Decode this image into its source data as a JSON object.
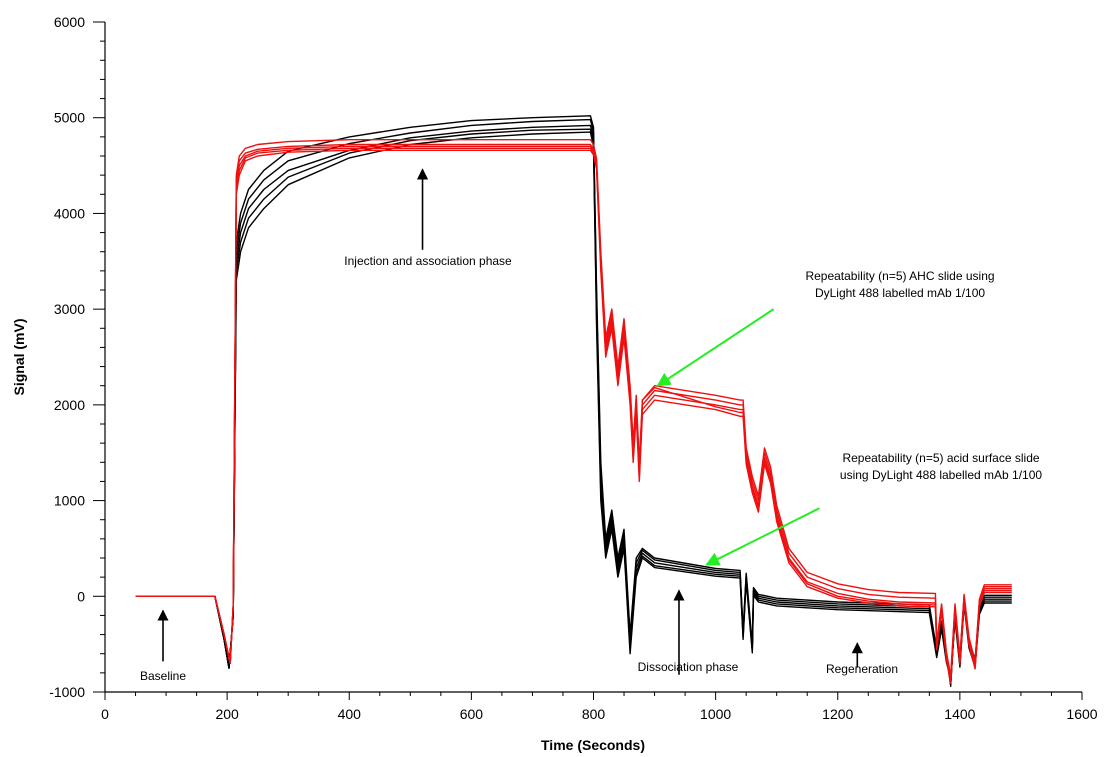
{
  "chart_data": {
    "type": "line",
    "title": "",
    "xlabel": "Time (Seconds)",
    "ylabel": "Signal (mV)",
    "xlim": [
      0,
      1600
    ],
    "ylim": [
      -1000,
      6000
    ],
    "xticks": [
      0,
      200,
      400,
      600,
      800,
      1000,
      1200,
      1400,
      1600
    ],
    "yticks": [
      -1000,
      0,
      1000,
      2000,
      3000,
      4000,
      5000,
      6000
    ],
    "grid": false,
    "colors": {
      "AHC": "#ee1111",
      "acid": "#000000",
      "annotation_arrow_green": "#22ee22",
      "annotation_arrow_black": "#000000"
    },
    "series": [
      {
        "group": "acid",
        "color": "#000000",
        "x": [
          50,
          180,
          195,
          203,
          210,
          215,
          222,
          235,
          260,
          300,
          400,
          500,
          600,
          700,
          795,
          800,
          805,
          812,
          820,
          830,
          840,
          850,
          860,
          870,
          880,
          900,
          1000,
          1040,
          1045,
          1050,
          1060,
          1062,
          1070,
          1100,
          1200,
          1350,
          1362,
          1370,
          1378,
          1385,
          1392,
          1400,
          1407,
          1415,
          1425,
          1432,
          1440,
          1485
        ],
        "y": [
          0,
          0,
          -450,
          -750,
          -200,
          3500,
          3800,
          4050,
          4250,
          4450,
          4660,
          4790,
          4860,
          4900,
          4920,
          4800,
          3000,
          1200,
          500,
          800,
          300,
          600,
          -500,
          300,
          450,
          350,
          250,
          230,
          -400,
          200,
          -550,
          50,
          -20,
          -60,
          -100,
          -130,
          -600,
          -300,
          -650,
          -900,
          -200,
          -700,
          -50,
          -500,
          -700,
          -150,
          -30,
          -30
        ]
      },
      {
        "group": "acid",
        "color": "#000000",
        "x": [
          50,
          180,
          195,
          203,
          210,
          215,
          222,
          235,
          260,
          300,
          400,
          500,
          600,
          700,
          795,
          800,
          805,
          812,
          820,
          830,
          840,
          850,
          860,
          870,
          880,
          900,
          1000,
          1040,
          1045,
          1050,
          1060,
          1062,
          1070,
          1100,
          1200,
          1350,
          1362,
          1370,
          1378,
          1385,
          1392,
          1400,
          1407,
          1415,
          1425,
          1432,
          1440,
          1485
        ],
        "y": [
          0,
          0,
          -450,
          -750,
          -200,
          3400,
          3700,
          3950,
          4150,
          4380,
          4630,
          4760,
          4830,
          4870,
          4880,
          4750,
          2900,
          1100,
          450,
          750,
          250,
          550,
          -550,
          250,
          420,
          320,
          230,
          210,
          -420,
          180,
          -570,
          30,
          -40,
          -80,
          -120,
          -150,
          -620,
          -320,
          -670,
          -880,
          -220,
          -720,
          -70,
          -520,
          -720,
          -170,
          -50,
          -50
        ]
      },
      {
        "group": "acid",
        "color": "#000000",
        "x": [
          50,
          180,
          195,
          203,
          210,
          215,
          222,
          235,
          260,
          300,
          400,
          500,
          600,
          700,
          795,
          800,
          805,
          812,
          820,
          830,
          840,
          850,
          860,
          870,
          880,
          900,
          1000,
          1040,
          1045,
          1050,
          1060,
          1062,
          1070,
          1100,
          1200,
          1350,
          1362,
          1370,
          1378,
          1385,
          1392,
          1400,
          1407,
          1415,
          1425,
          1432,
          1440,
          1485
        ],
        "y": [
          0,
          0,
          -450,
          -750,
          -200,
          3300,
          3600,
          3850,
          4050,
          4300,
          4580,
          4720,
          4790,
          4830,
          4850,
          4700,
          2800,
          1000,
          400,
          700,
          200,
          500,
          -600,
          200,
          400,
          300,
          210,
          190,
          -450,
          160,
          -590,
          10,
          -60,
          -100,
          -140,
          -170,
          -640,
          -340,
          -690,
          -860,
          -240,
          -740,
          -90,
          -540,
          -740,
          -190,
          -70,
          -70
        ]
      },
      {
        "group": "acid",
        "color": "#000000",
        "x": [
          50,
          180,
          195,
          203,
          210,
          215,
          222,
          235,
          260,
          300,
          400,
          500,
          600,
          700,
          795,
          800,
          805,
          812,
          820,
          830,
          840,
          850,
          860,
          870,
          880,
          900,
          1000,
          1040,
          1045,
          1050,
          1060,
          1062,
          1070,
          1100,
          1200,
          1350,
          1362,
          1370,
          1378,
          1385,
          1392,
          1400,
          1407,
          1415,
          1425,
          1432,
          1440,
          1485
        ],
        "y": [
          0,
          0,
          -450,
          -750,
          -200,
          3600,
          3900,
          4150,
          4350,
          4550,
          4730,
          4840,
          4920,
          4960,
          4980,
          4850,
          3100,
          1300,
          550,
          850,
          350,
          650,
          -450,
          350,
          480,
          380,
          270,
          250,
          -380,
          220,
          -530,
          70,
          0,
          -40,
          -80,
          -110,
          -580,
          -280,
          -630,
          -920,
          -180,
          -680,
          -30,
          -480,
          -680,
          -130,
          -10,
          -10
        ]
      },
      {
        "group": "acid",
        "color": "#000000",
        "x": [
          50,
          180,
          195,
          203,
          210,
          215,
          222,
          235,
          260,
          300,
          400,
          500,
          600,
          700,
          795,
          800,
          805,
          812,
          820,
          830,
          840,
          850,
          860,
          870,
          880,
          900,
          1000,
          1040,
          1045,
          1050,
          1060,
          1062,
          1070,
          1100,
          1200,
          1350,
          1362,
          1370,
          1378,
          1385,
          1392,
          1400,
          1407,
          1415,
          1425,
          1432,
          1440,
          1485
        ],
        "y": [
          0,
          0,
          -450,
          -750,
          -200,
          3700,
          4000,
          4250,
          4450,
          4650,
          4800,
          4900,
          4970,
          5000,
          5020,
          4900,
          3200,
          1400,
          600,
          900,
          400,
          700,
          -400,
          400,
          500,
          400,
          290,
          270,
          -360,
          240,
          -510,
          90,
          20,
          -20,
          -60,
          -90,
          -560,
          -260,
          -610,
          -940,
          -160,
          -660,
          -10,
          -460,
          -660,
          -110,
          10,
          10
        ]
      },
      {
        "group": "AHC",
        "color": "#ee1111",
        "x": [
          50,
          180,
          195,
          205,
          210,
          215,
          220,
          230,
          250,
          300,
          400,
          500,
          600,
          700,
          795,
          800,
          805,
          812,
          820,
          830,
          840,
          850,
          860,
          865,
          870,
          875,
          880,
          900,
          1000,
          1040,
          1045,
          1050,
          1060,
          1070,
          1080,
          1090,
          1100,
          1120,
          1150,
          1200,
          1250,
          1300,
          1360,
          1362,
          1370,
          1378,
          1385,
          1392,
          1400,
          1407,
          1415,
          1425,
          1432,
          1440,
          1485
        ],
        "y": [
          0,
          0,
          -400,
          -700,
          -100,
          4300,
          4500,
          4600,
          4650,
          4680,
          4700,
          4700,
          4700,
          4700,
          4700,
          4650,
          4500,
          3500,
          2600,
          2900,
          2300,
          2800,
          2100,
          1500,
          2000,
          1300,
          2000,
          2150,
          2050,
          2000,
          2000,
          1500,
          1200,
          1000,
          1500,
          1300,
          900,
          450,
          200,
          80,
          20,
          -10,
          -20,
          -500,
          -100,
          -600,
          -850,
          -100,
          -650,
          0,
          -450,
          -700,
          -50,
          100,
          100
        ]
      },
      {
        "group": "AHC",
        "color": "#ee1111",
        "x": [
          50,
          180,
          195,
          205,
          210,
          215,
          220,
          230,
          250,
          300,
          400,
          500,
          600,
          700,
          795,
          800,
          805,
          812,
          820,
          830,
          840,
          850,
          860,
          865,
          870,
          875,
          880,
          900,
          1000,
          1040,
          1045,
          1050,
          1060,
          1070,
          1080,
          1090,
          1100,
          1120,
          1150,
          1200,
          1250,
          1300,
          1360,
          1362,
          1370,
          1378,
          1385,
          1392,
          1400,
          1407,
          1415,
          1425,
          1432,
          1440,
          1485
        ],
        "y": [
          0,
          0,
          -400,
          -700,
          -100,
          4350,
          4550,
          4630,
          4670,
          4700,
          4720,
          4720,
          4720,
          4720,
          4720,
          4670,
          4520,
          3550,
          2650,
          2950,
          2350,
          2850,
          2150,
          1550,
          2050,
          1350,
          2050,
          2200,
          2100,
          2050,
          2050,
          1550,
          1250,
          1050,
          1550,
          1350,
          950,
          500,
          250,
          130,
          70,
          40,
          30,
          -480,
          -80,
          -580,
          -830,
          -80,
          -630,
          20,
          -430,
          -680,
          -30,
          120,
          120
        ]
      },
      {
        "group": "AHC",
        "color": "#ee1111",
        "x": [
          50,
          180,
          195,
          205,
          210,
          215,
          220,
          230,
          250,
          300,
          400,
          500,
          600,
          700,
          795,
          800,
          805,
          812,
          820,
          830,
          840,
          850,
          860,
          865,
          870,
          875,
          880,
          900,
          1000,
          1040,
          1045,
          1050,
          1060,
          1070,
          1080,
          1090,
          1100,
          1120,
          1150,
          1200,
          1250,
          1300,
          1360,
          1362,
          1370,
          1378,
          1385,
          1392,
          1400,
          1407,
          1415,
          1425,
          1432,
          1440,
          1485
        ],
        "y": [
          0,
          0,
          -400,
          -700,
          -100,
          4250,
          4450,
          4580,
          4630,
          4660,
          4680,
          4680,
          4680,
          4680,
          4680,
          4630,
          4480,
          3450,
          2550,
          2850,
          2250,
          2750,
          2050,
          1450,
          1950,
          1250,
          1950,
          2100,
          2000,
          1950,
          1950,
          1450,
          1150,
          950,
          1450,
          1250,
          850,
          400,
          150,
          30,
          -30,
          -60,
          -70,
          -520,
          -120,
          -620,
          -870,
          -120,
          -670,
          -20,
          -470,
          -720,
          -70,
          80,
          80
        ]
      },
      {
        "group": "AHC",
        "color": "#ee1111",
        "x": [
          50,
          180,
          195,
          205,
          210,
          215,
          220,
          230,
          250,
          300,
          400,
          500,
          600,
          700,
          795,
          800,
          805,
          812,
          820,
          830,
          840,
          850,
          860,
          865,
          870,
          875,
          880,
          900,
          1000,
          1040,
          1045,
          1050,
          1060,
          1070,
          1080,
          1090,
          1100,
          1120,
          1150,
          1200,
          1250,
          1300,
          1360,
          1362,
          1370,
          1378,
          1385,
          1392,
          1400,
          1407,
          1415,
          1425,
          1432,
          1440,
          1485
        ],
        "y": [
          0,
          0,
          -400,
          -700,
          -100,
          4400,
          4600,
          4680,
          4720,
          4750,
          4770,
          4770,
          4770,
          4770,
          4770,
          4720,
          4570,
          3600,
          2700,
          3000,
          2400,
          2900,
          2200,
          1600,
          2100,
          1400,
          2050,
          2180,
          1980,
          1920,
          1920,
          1420,
          1120,
          920,
          1420,
          1220,
          820,
          380,
          130,
          0,
          -50,
          -80,
          -90,
          -540,
          -140,
          -640,
          -890,
          -140,
          -690,
          -40,
          -490,
          -740,
          -90,
          60,
          60
        ]
      },
      {
        "group": "AHC",
        "color": "#ee1111",
        "x": [
          50,
          180,
          195,
          205,
          210,
          215,
          220,
          230,
          250,
          300,
          400,
          500,
          600,
          700,
          795,
          800,
          805,
          812,
          820,
          830,
          840,
          850,
          860,
          865,
          870,
          875,
          880,
          900,
          1000,
          1040,
          1045,
          1050,
          1060,
          1070,
          1080,
          1090,
          1100,
          1120,
          1150,
          1200,
          1250,
          1300,
          1360,
          1362,
          1370,
          1378,
          1385,
          1392,
          1400,
          1407,
          1415,
          1425,
          1432,
          1440,
          1485
        ],
        "y": [
          0,
          0,
          -400,
          -700,
          -100,
          4200,
          4400,
          4550,
          4600,
          4640,
          4660,
          4660,
          4660,
          4660,
          4660,
          4610,
          4460,
          3400,
          2500,
          2800,
          2200,
          2700,
          2000,
          1400,
          1900,
          1200,
          1900,
          2050,
          1950,
          1880,
          1880,
          1380,
          1080,
          880,
          1380,
          1180,
          780,
          350,
          100,
          -20,
          -70,
          -100,
          -110,
          -560,
          -160,
          -660,
          -910,
          -160,
          -710,
          -60,
          -510,
          -760,
          -110,
          40,
          40
        ]
      }
    ],
    "annotations": [
      {
        "text": [
          "Injection and association phase"
        ],
        "arrow_color": "#000000",
        "arrow_tip": [
          520,
          4460
        ],
        "arrow_tail": [
          520,
          3620
        ]
      },
      {
        "text": [
          "Repeatability (n=5) AHC slide using",
          "DyLight 488 labelled mAb 1/100"
        ],
        "arrow_color": "#22ee22",
        "arrow_tip": [
          905,
          2200
        ],
        "arrow_tail": [
          1095,
          3000
        ]
      },
      {
        "text": [
          "Repeatability (n=5) acid surface slide",
          "using DyLight 488 labelled mAb 1/100"
        ],
        "arrow_color": "#22ee22",
        "arrow_tip": [
          985,
          330
        ],
        "arrow_tail": [
          1170,
          920
        ]
      },
      {
        "text": [
          "Baseline"
        ],
        "arrow_color": "#000000",
        "arrow_tip": [
          95,
          -150
        ],
        "arrow_tail": [
          95,
          -680
        ]
      },
      {
        "text": [
          "Dissociation phase"
        ],
        "arrow_color": "#000000",
        "arrow_tip": [
          940,
          60
        ],
        "arrow_tail": [
          940,
          -820
        ]
      },
      {
        "text": [
          "Regeneration"
        ],
        "arrow_color": "#000000",
        "arrow_tip": [
          1232,
          -490
        ],
        "arrow_tail": [
          1232,
          -740
        ]
      }
    ]
  }
}
